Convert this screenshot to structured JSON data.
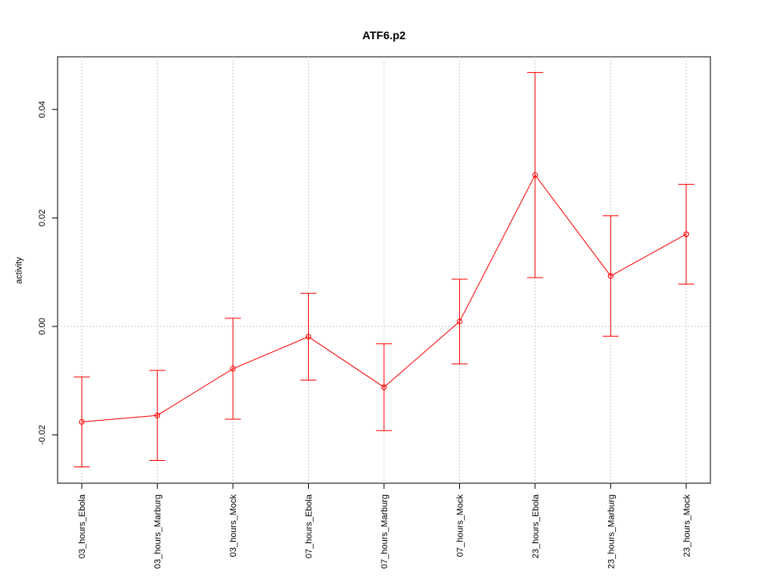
{
  "chart_data": {
    "type": "line",
    "title": "ATF6.p2",
    "y_label": "activity",
    "categories": [
      "03_hours_Ebola",
      "03_hours_Marburg",
      "03_hours_Mock",
      "07_hours_Ebola",
      "07_hours_Marburg",
      "07_hours_Mock",
      "23_hours_Ebola",
      "23_hours_Marburg",
      "23_hours_Mock"
    ],
    "series": [
      {
        "name": "ATF6.p2",
        "color": "#ff0000",
        "values": [
          -0.0176,
          -0.0164,
          -0.0078,
          -0.0019,
          -0.0112,
          0.0009,
          0.0279,
          0.0093,
          0.017
        ],
        "errors": [
          0.0083,
          0.0083,
          0.0093,
          0.008,
          0.008,
          0.0078,
          0.0189,
          0.0111,
          0.0092
        ]
      }
    ],
    "ylim": [
      -0.0289,
      0.0497
    ],
    "yticks": [
      -0.02,
      {
        "value": 0,
        "label": "0.00"
      },
      0.02,
      0.04
    ],
    "reference_line": 0,
    "grid": true
  }
}
